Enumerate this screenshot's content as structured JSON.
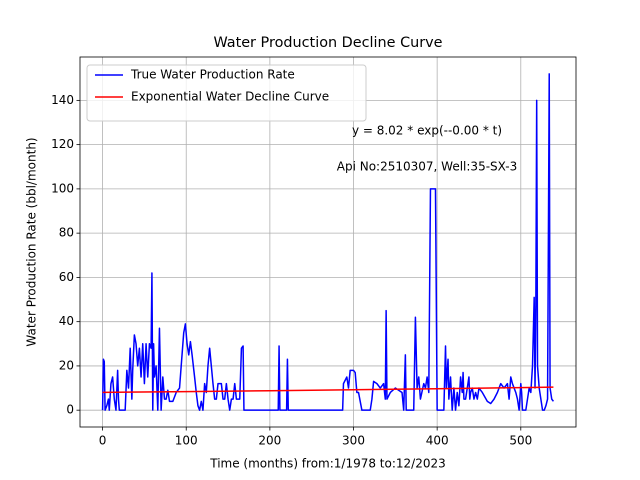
{
  "chart_data": {
    "type": "line",
    "title": "Water Production Decline Curve",
    "xlabel": "Time (months) from:1/1978 to:12/2023",
    "ylabel": "Water Production Rate (bbl/month)",
    "annotations": [
      "y = 8.02 * exp(--0.00 * t)",
      "Api No:2510307, Well:35-SX-3"
    ],
    "xlim": [
      -27,
      566
    ],
    "ylim": [
      -7.6,
      159.6
    ],
    "xticks": [
      0,
      100,
      200,
      300,
      400,
      500
    ],
    "yticks": [
      0,
      20,
      40,
      60,
      80,
      100,
      120,
      140
    ],
    "grid": true,
    "legend": "upper left",
    "series": [
      {
        "name": "True Water Production Rate",
        "color": "#0000ff",
        "x": [
          0,
          1,
          2,
          3,
          5,
          7,
          8,
          10,
          12,
          14,
          16,
          18,
          19,
          20,
          25,
          27,
          29,
          31,
          33,
          35,
          36,
          38,
          40,
          42,
          44,
          46,
          48,
          50,
          52,
          54,
          56,
          58,
          59,
          60,
          61,
          62,
          64,
          66,
          68,
          70,
          72,
          74,
          76,
          78,
          80,
          84,
          88,
          92,
          95,
          97,
          99,
          101,
          103,
          105,
          107,
          110,
          112,
          114,
          116,
          118,
          120,
          122,
          124,
          126,
          128,
          130,
          132,
          134,
          136,
          138,
          142,
          144,
          146,
          148,
          150,
          152,
          154,
          156,
          158,
          160,
          164,
          166,
          168,
          169,
          180,
          200,
          210,
          211,
          212,
          220,
          221,
          222,
          240,
          260,
          287,
          288,
          292,
          294,
          296,
          300,
          302,
          304,
          306,
          310,
          320,
          322,
          324,
          328,
          332,
          336,
          338,
          339,
          340,
          344,
          350,
          358,
          360,
          362,
          363,
          372,
          374,
          376,
          378,
          380,
          384,
          386,
          388,
          390,
          392,
          398,
          400,
          408,
          410,
          411,
          413,
          414,
          416,
          418,
          420,
          422,
          424,
          426,
          428,
          430,
          431,
          432,
          434,
          436,
          438,
          439,
          440,
          442,
          444,
          446,
          448,
          450,
          454,
          460,
          464,
          468,
          472,
          476,
          480,
          484,
          486,
          488,
          490,
          492,
          494,
          496,
          498,
          500,
          501,
          502,
          506,
          510,
          512,
          514,
          516,
          517,
          518,
          519,
          520,
          522,
          524,
          526,
          528,
          530,
          532,
          534,
          535,
          537,
          539
        ],
        "values": [
          0,
          23,
          22,
          0,
          2,
          5,
          0,
          12,
          15,
          5,
          0,
          18,
          5,
          0,
          0,
          0,
          18,
          10,
          28,
          5,
          18,
          34,
          30,
          20,
          28,
          15,
          30,
          12,
          30,
          15,
          30,
          28,
          62,
          0,
          30,
          15,
          20,
          0,
          37,
          0,
          15,
          5,
          5,
          9,
          4,
          4,
          8,
          10,
          25,
          35,
          39,
          30,
          25,
          31,
          25,
          15,
          8,
          2,
          0,
          4,
          0,
          12,
          8,
          20,
          28,
          20,
          12,
          5,
          5,
          12,
          12,
          5,
          5,
          12,
          5,
          0,
          5,
          5,
          12,
          5,
          5,
          28,
          29,
          0,
          0,
          0,
          0,
          29,
          0,
          0,
          23,
          0,
          0,
          0,
          0,
          12,
          15,
          10,
          18,
          18,
          17,
          8,
          8,
          0,
          0,
          5,
          13,
          12,
          10,
          12,
          5,
          45,
          5,
          8,
          10,
          8,
          0,
          25,
          0,
          0,
          42,
          10,
          15,
          5,
          12,
          10,
          15,
          8,
          100,
          100,
          0,
          0,
          29,
          10,
          23,
          5,
          15,
          0,
          10,
          0,
          8,
          2,
          15,
          8,
          17,
          5,
          5,
          10,
          15,
          5,
          8,
          10,
          5,
          8,
          5,
          10,
          8,
          4,
          3,
          5,
          8,
          12,
          10,
          12,
          5,
          15,
          12,
          10,
          8,
          5,
          0,
          12,
          8,
          0,
          0,
          10,
          8,
          20,
          51,
          10,
          48,
          140,
          20,
          10,
          5,
          0,
          0,
          2,
          5,
          152,
          10,
          5,
          4
        ]
      },
      {
        "name": "Exponential Water Decline Curve",
        "color": "#ff0000",
        "x": [
          0,
          100,
          200,
          300,
          400,
          500,
          539
        ],
        "values": [
          8.02,
          8.4,
          8.8,
          9.25,
          9.7,
          10.2,
          10.4
        ]
      }
    ]
  }
}
